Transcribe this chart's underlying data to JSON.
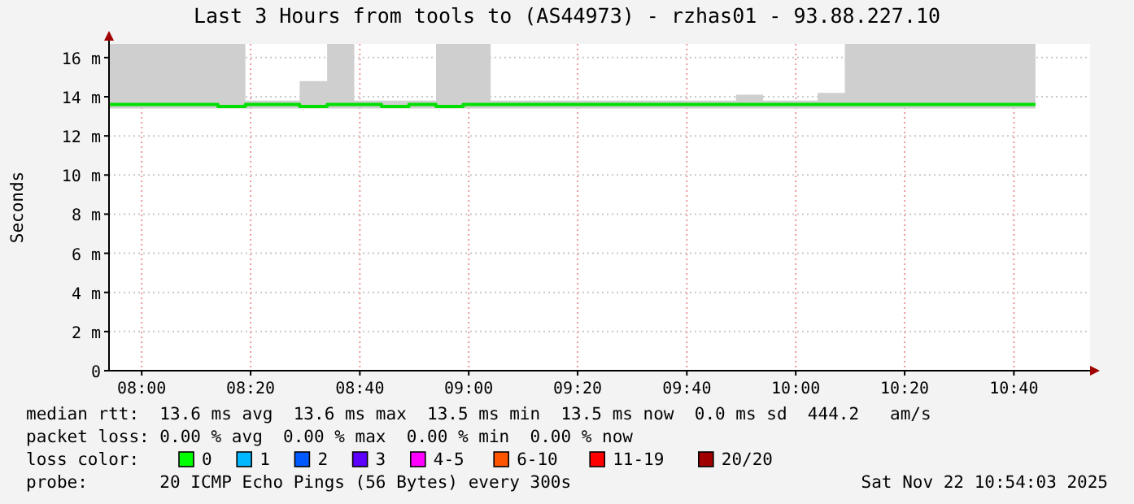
{
  "chart_data": {
    "type": "step",
    "title": "Last 3 Hours from tools to (AS44973) - rzhas01 - 93.88.227.10",
    "ylabel": "Seconds",
    "x": [
      7.9,
      7.983,
      8.067,
      8.15,
      8.233,
      8.317,
      8.4,
      8.483,
      8.567,
      8.65,
      8.733,
      8.817,
      8.9,
      8.983,
      9.067,
      9.15,
      9.233,
      9.317,
      9.4,
      9.483,
      9.567,
      9.65,
      9.733,
      9.817,
      9.9,
      9.983,
      10.067,
      10.15,
      10.233,
      10.317,
      10.4,
      10.483,
      10.567,
      10.65,
      10.733
    ],
    "series": [
      {
        "color": "#00e000",
        "values": [
          13.6,
          13.6,
          13.6,
          13.6,
          13.5,
          13.6,
          13.6,
          13.5,
          13.6,
          13.6,
          13.5,
          13.6,
          13.5,
          13.6,
          13.6,
          13.6,
          13.6,
          13.6,
          13.6,
          13.6,
          13.6,
          13.6,
          13.6,
          13.6,
          13.6,
          13.6,
          13.6,
          13.6,
          13.6,
          13.6,
          13.6,
          13.6,
          13.6,
          13.6,
          13.6
        ],
        "lower": [
          13.4,
          13.4,
          13.4,
          13.4,
          13.4,
          13.4,
          13.4,
          13.4,
          13.4,
          13.4,
          13.4,
          13.4,
          13.4,
          13.4,
          13.4,
          13.4,
          13.4,
          13.4,
          13.4,
          13.4,
          13.4,
          13.4,
          13.4,
          13.4,
          13.4,
          13.4,
          13.4,
          13.4,
          13.4,
          13.4,
          13.4,
          13.4,
          13.4,
          13.4,
          13.4
        ],
        "upper": [
          16.7,
          16.7,
          16.7,
          16.7,
          16.7,
          13.8,
          13.8,
          14.8,
          16.7,
          13.8,
          13.8,
          13.8,
          16.7,
          16.7,
          13.8,
          13.8,
          13.8,
          13.8,
          13.8,
          13.8,
          13.8,
          13.8,
          13.8,
          14.1,
          13.8,
          13.8,
          14.2,
          16.7,
          16.7,
          16.7,
          16.7,
          16.7,
          16.7,
          16.7,
          16.7
        ]
      }
    ],
    "xlim": [
      7.9,
      10.9
    ],
    "xticks": [
      {
        "value": 8,
        "label": "08:00"
      },
      {
        "value": 8.333,
        "label": "08:20"
      },
      {
        "value": 8.667,
        "label": "08:40"
      },
      {
        "value": 9,
        "label": "09:00"
      },
      {
        "value": 9.333,
        "label": "09:20"
      },
      {
        "value": 9.667,
        "label": "09:40"
      },
      {
        "value": 10,
        "label": "10:00"
      },
      {
        "value": 10.333,
        "label": "10:20"
      },
      {
        "value": 10.667,
        "label": "10:40"
      }
    ],
    "ylim": [
      0,
      16.7
    ],
    "yticks": [
      0,
      {
        "value": 2,
        "label": "2 m"
      },
      {
        "value": 4,
        "label": "4 m"
      },
      {
        "value": 6,
        "label": "6 m"
      },
      {
        "value": 8,
        "label": "8 m"
      },
      {
        "value": 10,
        "label": "10 m"
      },
      {
        "value": 12,
        "label": "12 m"
      },
      {
        "value": 14,
        "label": "14 m"
      },
      {
        "value": 16,
        "label": "16 m"
      }
    ],
    "grid": true,
    "annotations": [
      "median rtt:  13.6 ms avg  13.6 ms max  13.5 ms min  13.5 ms now  0.0 ms sd  444.2   am/s",
      "packet loss: 0.00 % avg  0.00 % max  0.00 % min  0.00 % now",
      "loss color:",
      "0",
      "1",
      "2",
      "3",
      "4-5",
      "6-10",
      "11-19",
      "20/20",
      "probe:       20 ICMP Echo Pings (56 Bytes) every 300s",
      "Sat Nov 22 10:54:03 2025"
    ]
  }
}
